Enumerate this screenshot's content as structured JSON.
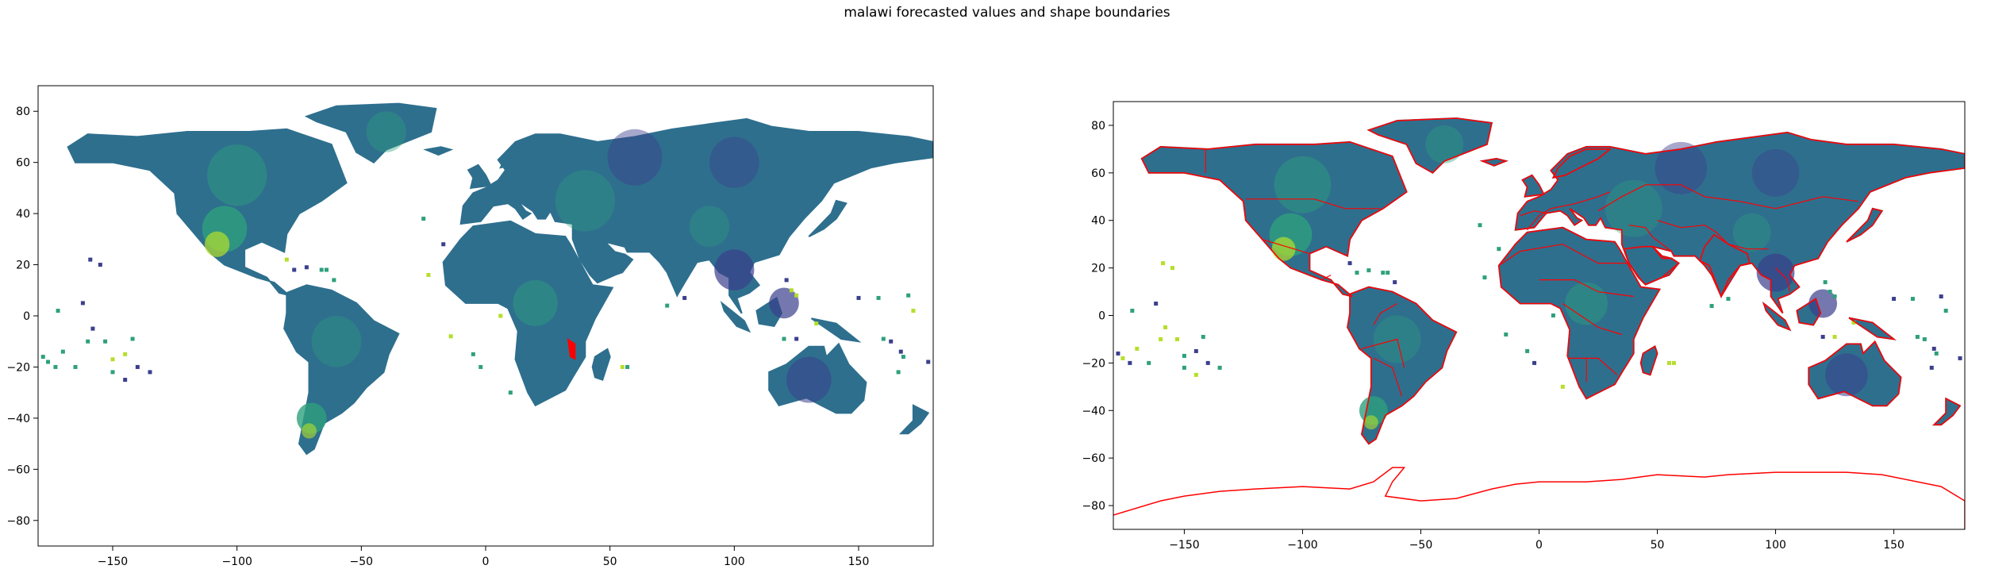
{
  "figure": {
    "suptitle": "malawi forecasted values and shape boundaries"
  },
  "colors": {
    "land_base": "#2e6f8e",
    "land_dark": "#3b3f8c",
    "land_green": "#2ea07d",
    "land_yellow": "#b5de2b",
    "boundary": "#ff0000",
    "axes": "#000000"
  },
  "chart_data": [
    {
      "type": "heatmap",
      "title": "",
      "xlabel": "",
      "ylabel": "",
      "xlim": [
        -180,
        180
      ],
      "ylim": [
        -90,
        90
      ],
      "xticks": [
        -150,
        -100,
        -50,
        0,
        50,
        100,
        150
      ],
      "yticks": [
        -80,
        -60,
        -40,
        -20,
        0,
        20,
        40,
        60,
        80
      ],
      "colormap": "viridis",
      "highlight_region": {
        "name": "malawi",
        "lon": [
          33,
          36
        ],
        "lat": [
          -17,
          -9
        ]
      }
    },
    {
      "type": "heatmap",
      "title": "",
      "xlabel": "",
      "ylabel": "",
      "xlim": [
        -180,
        180
      ],
      "ylim": [
        -90,
        90
      ],
      "xticks": [
        -150,
        -100,
        -50,
        0,
        50,
        100,
        150
      ],
      "yticks": [
        -80,
        -60,
        -40,
        -20,
        0,
        20,
        40,
        60,
        80
      ],
      "colormap": "viridis",
      "overlay": "shape boundaries"
    }
  ]
}
